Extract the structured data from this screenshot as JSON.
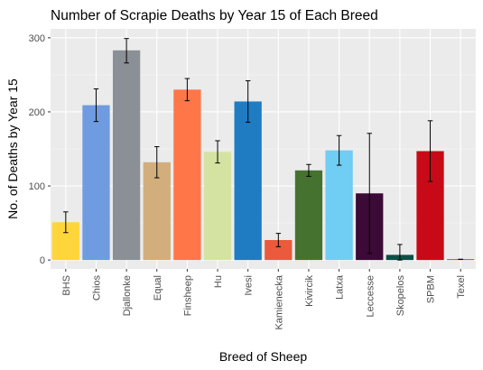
{
  "chart_data": {
    "type": "bar",
    "title": "Number of Scrapie Deaths by Year 15 of Each Breed",
    "xlabel": "Breed of Sheep",
    "ylabel": "No. of Deaths by Year 15",
    "ylim": [
      -12,
      312
    ],
    "yticks": [
      0,
      100,
      200,
      300
    ],
    "grid": true,
    "legend": "none",
    "categories": [
      "BHS",
      "Chios",
      "Djallonke",
      "Equal",
      "Finsheep",
      "Hu",
      "Ivesi",
      "Kamienecka",
      "Kivircik",
      "Latxa",
      "Leccesse",
      "Skopelos",
      "SPBM",
      "Texel"
    ],
    "values": [
      51,
      209,
      283,
      132,
      230,
      146,
      214,
      27,
      121,
      148,
      90,
      7,
      147,
      1
    ],
    "error_low": [
      37,
      187,
      266,
      111,
      215,
      131,
      186,
      18,
      113,
      128,
      9,
      0,
      106,
      1
    ],
    "error_high": [
      65,
      231,
      299,
      153,
      245,
      161,
      242,
      36,
      129,
      168,
      171,
      21,
      188,
      1
    ],
    "colors": [
      "#FFD53C",
      "#6F9BE0",
      "#8A9095",
      "#D2AE7C",
      "#FF7648",
      "#D5E3A2",
      "#1F7CC2",
      "#EB5A3C",
      "#45732F",
      "#70CDF3",
      "#3C0A37",
      "#0F4E45",
      "#C80A18",
      "#C0521A"
    ]
  }
}
